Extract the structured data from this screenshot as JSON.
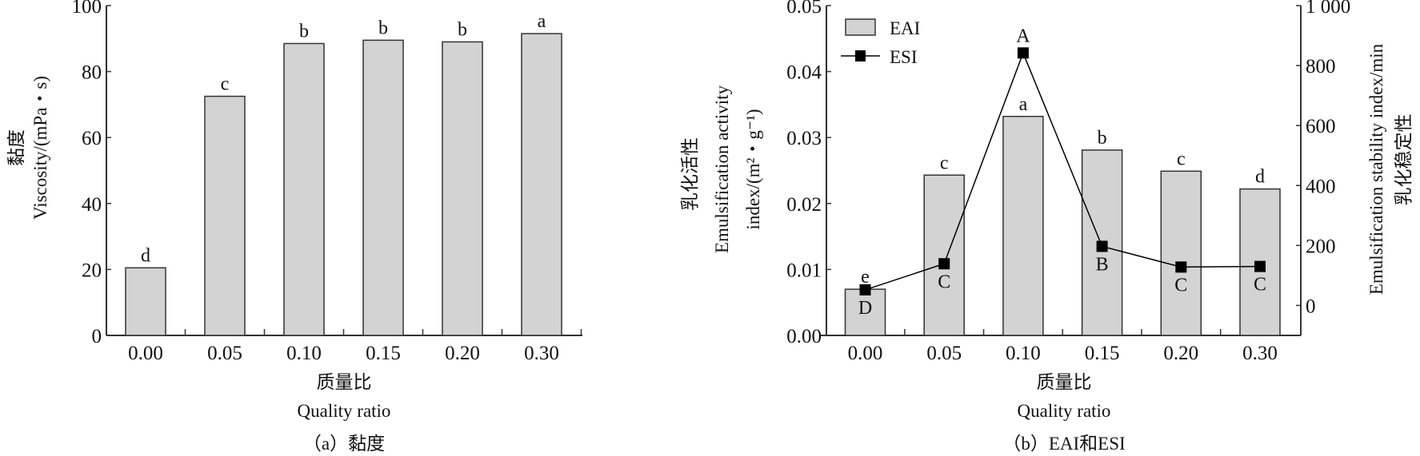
{
  "chart_data": [
    {
      "type": "bar",
      "title": "",
      "caption": "（a）黏度",
      "categories": [
        "0.00",
        "0.05",
        "0.10",
        "0.15",
        "0.20",
        "0.30"
      ],
      "values": [
        20.5,
        72.5,
        88.5,
        89.5,
        89.0,
        91.5
      ],
      "significance": [
        "d",
        "c",
        "b",
        "b",
        "b",
        "a"
      ],
      "xlabel_cn": "质量比",
      "xlabel": "Quality ratio",
      "ylabel_cn": "黏度",
      "ylabel": "Viscosity/(mPa・s)",
      "ylim": [
        0,
        100
      ],
      "yticks": [
        "0",
        "20",
        "40",
        "60",
        "80",
        "100"
      ],
      "bar_color": "#d3d3d3",
      "grid": false
    },
    {
      "type": "bar+line",
      "caption": "（b）EAI和ESI",
      "categories": [
        "0.00",
        "0.05",
        "0.10",
        "0.15",
        "0.20",
        "0.30"
      ],
      "series": [
        {
          "name": "EAI",
          "axis": "left",
          "type": "bar",
          "values": [
            0.007,
            0.0243,
            0.0332,
            0.0281,
            0.0249,
            0.0222
          ],
          "significance": [
            "e",
            "c",
            "a",
            "b",
            "c",
            "d"
          ]
        },
        {
          "name": "ESI",
          "axis": "right",
          "type": "line",
          "values": [
            52,
            139,
            842,
            197,
            128,
            130
          ],
          "significance": [
            "D",
            "C",
            "A",
            "B",
            "C",
            "C"
          ]
        }
      ],
      "xlabel_cn": "质量比",
      "xlabel": "Quality ratio",
      "ylabel_left_cn": "乳化活性",
      "ylabel_left_1": "Emulsification activity",
      "ylabel_left_2": "index/(m²・g⁻¹)",
      "ylabel_right": "Emulsification stability index/min",
      "ylabel_right_cn": "乳化稳定性",
      "ylim_left": [
        0,
        0.05
      ],
      "ylim_right": [
        -100,
        1000
      ],
      "yticks_left": [
        "0.00",
        "0.01",
        "0.02",
        "0.03",
        "0.04",
        "0.05"
      ],
      "yticks_right": [
        "0",
        "200",
        "400",
        "600",
        "800",
        "1 000"
      ],
      "legend_position": "top-left",
      "bar_color": "#d3d3d3",
      "line_color": "#000000",
      "grid": false
    }
  ]
}
